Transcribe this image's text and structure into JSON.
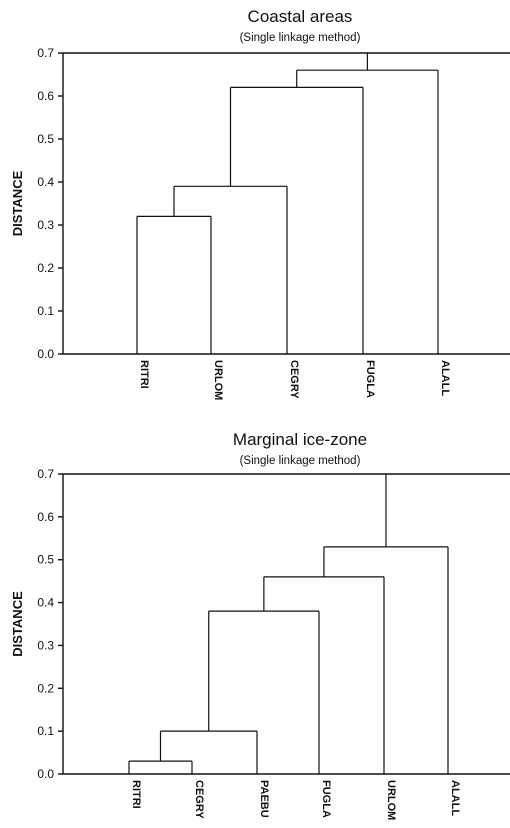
{
  "chart_data": [
    {
      "type": "dendrogram",
      "title": "Coastal areas",
      "subtitle": "(Single linkage method)",
      "ylabel": "DISTANCE",
      "ylim": [
        0,
        0.7
      ],
      "yticks": [
        "0.0",
        "0.1",
        "0.2",
        "0.3",
        "0.4",
        "0.5",
        "0.6",
        "0.7"
      ],
      "leaves": [
        "RITRI",
        "URLOM",
        "CEGRY",
        "FUGLA",
        "ALALL"
      ],
      "merges": [
        {
          "left": 0,
          "right": 1,
          "height": 0.32
        },
        {
          "left": 5,
          "right": 2,
          "height": 0.39
        },
        {
          "left": 6,
          "right": 3,
          "height": 0.62
        },
        {
          "left": 7,
          "right": 4,
          "height": 0.66
        }
      ]
    },
    {
      "type": "dendrogram",
      "title": "Marginal ice-zone",
      "subtitle": "(Single linkage method)",
      "ylabel": "DISTANCE",
      "ylim": [
        0,
        0.7
      ],
      "yticks": [
        "0.0",
        "0.1",
        "0.2",
        "0.3",
        "0.4",
        "0.5",
        "0.6",
        "0.7"
      ],
      "leaves": [
        "RITRI",
        "CEGRY",
        "PAEBU",
        "FUGLA",
        "URLOM",
        "ALALL"
      ],
      "merges": [
        {
          "left": 0,
          "right": 1,
          "height": 0.03
        },
        {
          "left": 6,
          "right": 2,
          "height": 0.1
        },
        {
          "left": 7,
          "right": 3,
          "height": 0.38
        },
        {
          "left": 8,
          "right": 4,
          "height": 0.46
        },
        {
          "left": 9,
          "right": 5,
          "height": 0.53
        }
      ]
    }
  ]
}
